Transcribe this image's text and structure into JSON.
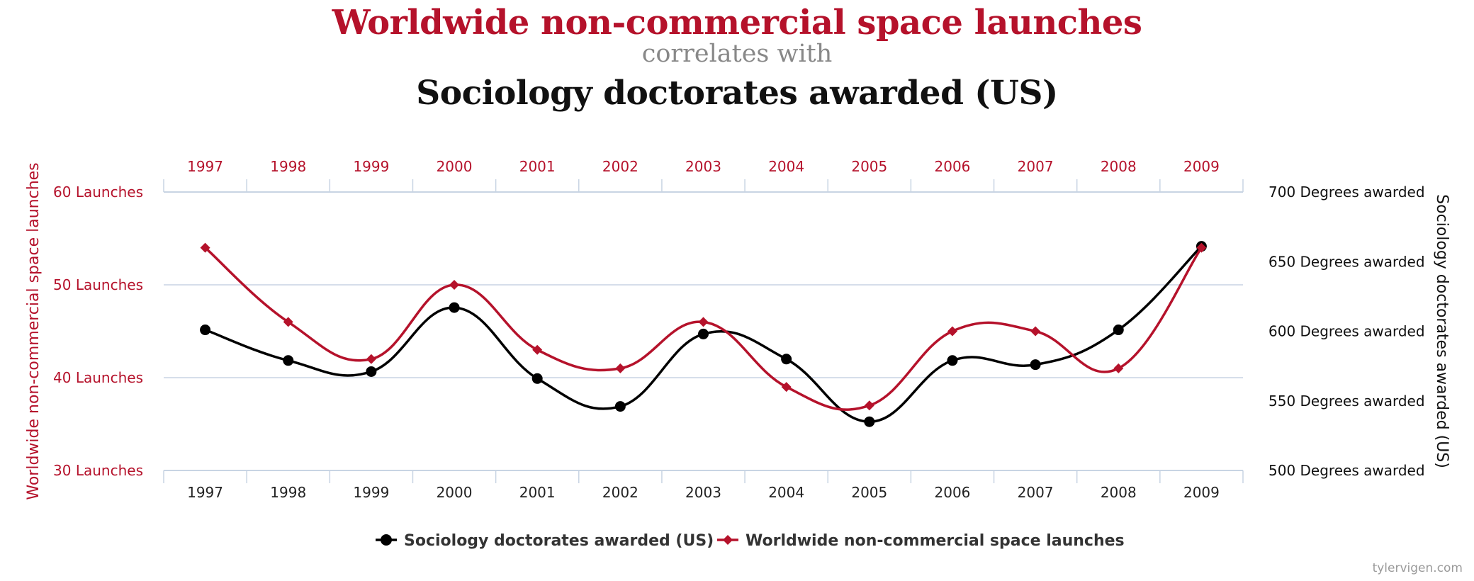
{
  "header": {
    "title_a": "Worldwide non-commercial space launches",
    "connector": "correlates with",
    "title_b": "Sociology doctorates awarded (US)"
  },
  "chart_data": {
    "type": "line",
    "categories": [
      "1997",
      "1998",
      "1999",
      "2000",
      "2001",
      "2002",
      "2003",
      "2004",
      "2005",
      "2006",
      "2007",
      "2008",
      "2009"
    ],
    "series": [
      {
        "name": "Sociology doctorates awarded (US)",
        "axis": "right",
        "color": "#000000",
        "marker": "circle",
        "values": [
          601,
          579,
          571,
          617,
          566,
          546,
          598,
          580,
          535,
          579,
          576,
          601,
          661
        ]
      },
      {
        "name": "Worldwide non-commercial space launches",
        "axis": "left",
        "color": "#b5122b",
        "marker": "diamond",
        "values": [
          54,
          46,
          42,
          50,
          43,
          41,
          46,
          39,
          37,
          45,
          45,
          41,
          54
        ]
      }
    ],
    "y_left": {
      "label": "Worldwide non-commercial space launches",
      "range": [
        30,
        60
      ],
      "ticks": [
        30,
        40,
        50,
        60
      ],
      "tick_suffix": " Launches",
      "color": "#b5122b"
    },
    "y_right": {
      "label": "Sociology doctorates awarded (US)",
      "range": [
        500,
        700
      ],
      "ticks": [
        500,
        550,
        600,
        650,
        700
      ],
      "tick_suffix": " Degrees awarded",
      "color": "#111111"
    },
    "legend": [
      "Sociology doctorates awarded (US)",
      "Worldwide non-commercial space launches"
    ],
    "legend_position": "bottom-center",
    "grid": true
  },
  "watermark": "tylervigen.com"
}
